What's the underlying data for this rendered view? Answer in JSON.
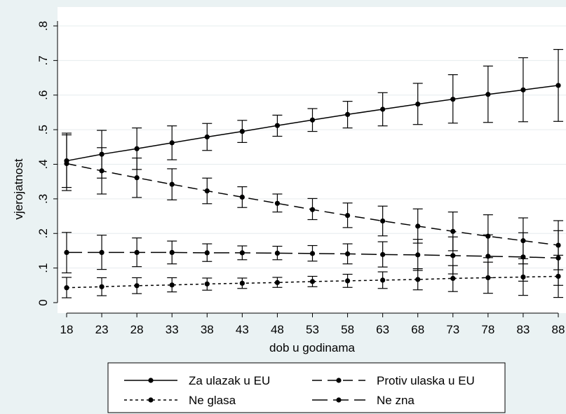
{
  "chart_data": {
    "type": "line",
    "xlabel": "dob u godinama",
    "ylabel": "vjerojatnost",
    "x": [
      18,
      23,
      28,
      33,
      38,
      43,
      48,
      53,
      58,
      63,
      68,
      73,
      78,
      83,
      88
    ],
    "xlim": [
      18,
      88
    ],
    "ylim": [
      0,
      0.8
    ],
    "x_ticks": [
      "18",
      "23",
      "28",
      "33",
      "38",
      "43",
      "48",
      "53",
      "58",
      "63",
      "68",
      "73",
      "78",
      "83",
      "88"
    ],
    "y_ticks": [
      {
        "value": 0,
        "label": "0"
      },
      {
        "value": 0.1,
        "label": ".1"
      },
      {
        "value": 0.2,
        "label": ".2"
      },
      {
        "value": 0.3,
        "label": ".3"
      },
      {
        "value": 0.4,
        "label": ".4"
      },
      {
        "value": 0.5,
        "label": ".5"
      },
      {
        "value": 0.6,
        "label": ".6"
      },
      {
        "value": 0.7,
        "label": ".7"
      },
      {
        "value": 0.8,
        "label": ".8"
      }
    ],
    "grid": "horizontal",
    "legend_placement": "bottom",
    "series": [
      {
        "name": "Za ulazak u EU",
        "dash": "solid",
        "values": [
          0.41,
          0.429,
          0.445,
          0.462,
          0.479,
          0.495,
          0.512,
          0.528,
          0.544,
          0.559,
          0.574,
          0.588,
          0.602,
          0.615,
          0.628
        ],
        "ci_low": [
          0.333,
          0.36,
          0.385,
          0.413,
          0.44,
          0.463,
          0.481,
          0.495,
          0.505,
          0.511,
          0.515,
          0.519,
          0.521,
          0.523,
          0.524
        ],
        "ci_high": [
          0.49,
          0.498,
          0.505,
          0.511,
          0.518,
          0.527,
          0.542,
          0.561,
          0.582,
          0.607,
          0.634,
          0.659,
          0.684,
          0.708,
          0.732
        ]
      },
      {
        "name": "Protiv ulaska u EU",
        "dash": "long",
        "values": [
          0.402,
          0.381,
          0.361,
          0.342,
          0.323,
          0.305,
          0.287,
          0.269,
          0.252,
          0.236,
          0.221,
          0.206,
          0.192,
          0.179,
          0.166
        ],
        "ci_low": [
          0.324,
          0.314,
          0.304,
          0.297,
          0.286,
          0.275,
          0.262,
          0.24,
          0.217,
          0.193,
          0.172,
          0.15,
          0.13,
          0.112,
          0.095
        ],
        "ci_high": [
          0.485,
          0.448,
          0.418,
          0.387,
          0.36,
          0.335,
          0.314,
          0.301,
          0.288,
          0.279,
          0.271,
          0.262,
          0.254,
          0.245,
          0.237
        ]
      },
      {
        "name": "Ne glasa",
        "dash": "short",
        "values": [
          0.043,
          0.046,
          0.049,
          0.051,
          0.054,
          0.056,
          0.058,
          0.061,
          0.063,
          0.065,
          0.067,
          0.07,
          0.072,
          0.074,
          0.076
        ],
        "ci_low": [
          0.014,
          0.02,
          0.026,
          0.031,
          0.036,
          0.041,
          0.044,
          0.046,
          0.044,
          0.041,
          0.037,
          0.032,
          0.027,
          0.021,
          0.015
        ],
        "ci_high": [
          0.073,
          0.072,
          0.072,
          0.072,
          0.071,
          0.071,
          0.073,
          0.076,
          0.082,
          0.089,
          0.098,
          0.107,
          0.117,
          0.127,
          0.137
        ]
      },
      {
        "name": "Ne zna",
        "dash": "longdash",
        "values": [
          0.145,
          0.145,
          0.145,
          0.145,
          0.144,
          0.144,
          0.143,
          0.142,
          0.141,
          0.139,
          0.138,
          0.136,
          0.134,
          0.132,
          0.129
        ],
        "ci_low": [
          0.086,
          0.096,
          0.104,
          0.112,
          0.119,
          0.124,
          0.124,
          0.12,
          0.112,
          0.103,
          0.093,
          0.083,
          0.072,
          0.062,
          0.05
        ],
        "ci_high": [
          0.203,
          0.195,
          0.187,
          0.178,
          0.17,
          0.164,
          0.163,
          0.165,
          0.17,
          0.176,
          0.183,
          0.19,
          0.196,
          0.202,
          0.208
        ]
      }
    ]
  }
}
